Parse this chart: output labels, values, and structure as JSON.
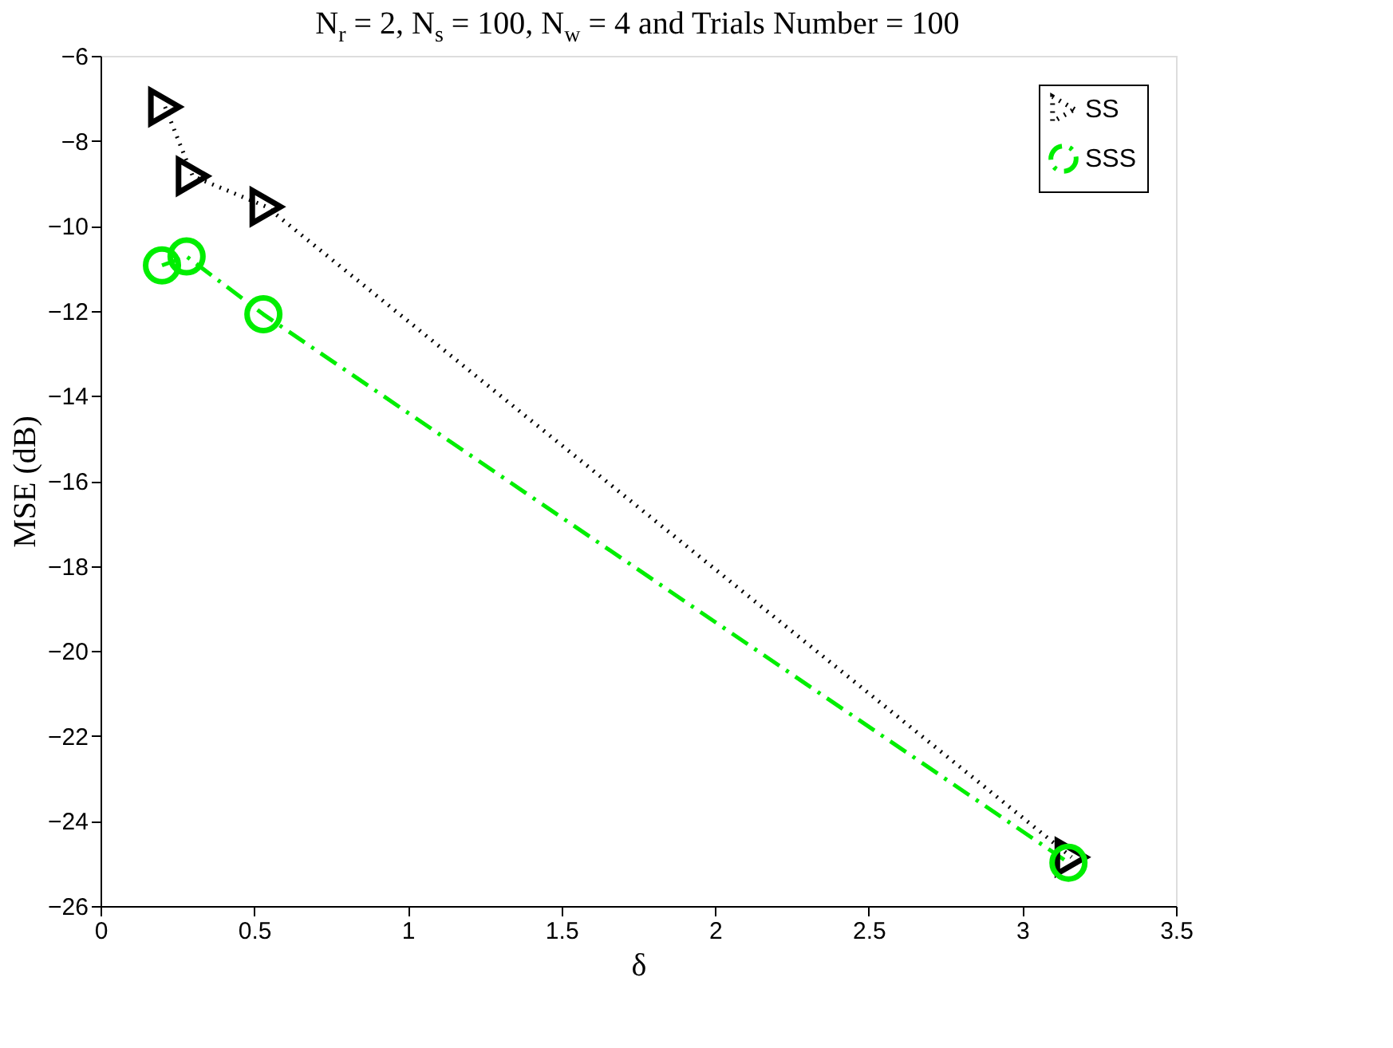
{
  "chart_data": {
    "type": "line",
    "title": "N$_{r}$ = 2, N$_{s}$ = 100, N$_{w}$ = 4 and Trials Number = 100",
    "xlabel": "δ",
    "ylabel": "MSE (dB)",
    "xlim": [
      0,
      3.5
    ],
    "xticks": [
      0,
      0.5,
      1,
      1.5,
      2,
      2.5,
      3,
      3.5
    ],
    "ylim": [
      -26,
      -6
    ],
    "yticks": [
      -26,
      -24,
      -22,
      -20,
      -18,
      -16,
      -14,
      -12,
      -10,
      -8,
      -6
    ],
    "grid": false,
    "legend": "top right",
    "series": [
      {
        "name": "SS",
        "color": "#000000",
        "marker": "triangle",
        "line_style": "dotted",
        "x": [
          0.21,
          0.3,
          0.54,
          3.16
        ],
        "values": [
          -7.2,
          -8.83,
          -9.55,
          -24.85
        ]
      },
      {
        "name": "SSS",
        "color": "#00ee00",
        "marker": "circle",
        "line_style": "dashed",
        "x": [
          0.2,
          0.28,
          0.53,
          3.15
        ],
        "values": [
          -10.93,
          -10.72,
          -12.08,
          -24.98
        ]
      }
    ]
  }
}
